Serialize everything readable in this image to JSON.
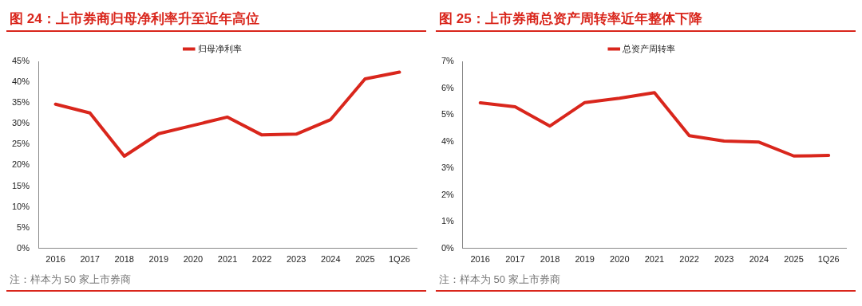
{
  "chart_data": [
    {
      "type": "line",
      "title": "图 24：上市券商归母净利率升至近年高位",
      "categories": [
        "2016",
        "2017",
        "2018",
        "2019",
        "2020",
        "2021",
        "2022",
        "2023",
        "2024",
        "2025",
        "1Q26"
      ],
      "series": [
        {
          "name": "归母净利率",
          "color": "#d9261c",
          "values": [
            34.7,
            32.6,
            22.2,
            27.6,
            29.6,
            31.6,
            27.3,
            27.5,
            31.0,
            40.8,
            42.4
          ]
        }
      ],
      "ylim": [
        0,
        45
      ],
      "yticks": [
        {
          "value": 0,
          "label": "0%"
        },
        {
          "value": 5,
          "label": "5%"
        },
        {
          "value": 10,
          "label": "10%"
        },
        {
          "value": 15,
          "label": "15%"
        },
        {
          "value": 20,
          "label": "20%"
        },
        {
          "value": 25,
          "label": "25%"
        },
        {
          "value": 30,
          "label": "30%"
        },
        {
          "value": 35,
          "label": "35%"
        },
        {
          "value": 40,
          "label": "40%"
        },
        {
          "value": 45,
          "label": "45%"
        }
      ],
      "grid": false,
      "legend": "top",
      "marker": "none",
      "line_style": "solid",
      "annotations": [
        "注：样本为 50 家上市券商"
      ]
    },
    {
      "type": "line",
      "title": "图 25：上市券商总资产周转率近年整体下降",
      "categories": [
        "2016",
        "2017",
        "2018",
        "2019",
        "2020",
        "2021",
        "2022",
        "2023",
        "2024",
        "2025",
        "1Q26"
      ],
      "series": [
        {
          "name": "总资产周转率",
          "color": "#d9261c",
          "values": [
            5.45,
            5.3,
            4.58,
            5.46,
            5.62,
            5.83,
            4.22,
            4.02,
            3.98,
            3.46,
            3.48
          ]
        }
      ],
      "ylim": [
        0,
        7
      ],
      "yticks": [
        {
          "value": 0,
          "label": "0%"
        },
        {
          "value": 1,
          "label": "1%"
        },
        {
          "value": 2,
          "label": "2%"
        },
        {
          "value": 3,
          "label": "3%"
        },
        {
          "value": 4,
          "label": "4%"
        },
        {
          "value": 5,
          "label": "5%"
        },
        {
          "value": 6,
          "label": "6%"
        },
        {
          "value": 7,
          "label": "7%"
        }
      ],
      "grid": false,
      "legend": "top",
      "marker": "none",
      "line_style": "solid",
      "annotations": [
        "注：样本为 50 家上市券商"
      ]
    }
  ]
}
